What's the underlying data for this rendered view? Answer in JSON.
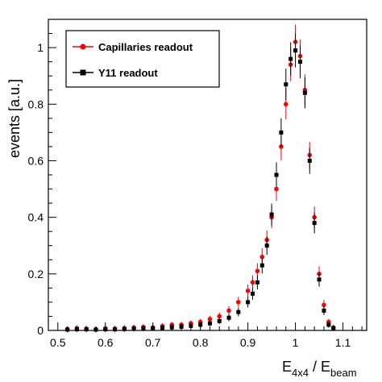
{
  "chart_data": {
    "type": "scatter",
    "title": "",
    "xlabel": {
      "main": "E",
      "sub1": "4x4",
      "sep": " / E",
      "sub2": "beam"
    },
    "ylabel": "events  [a.u.]",
    "xlim": [
      0.48,
      1.15
    ],
    "ylim": [
      0,
      1.1
    ],
    "x_ticks": [
      0.5,
      0.6,
      0.7,
      0.8,
      0.9,
      1.0,
      1.1
    ],
    "x_tick_labels": [
      "0.5",
      "0.6",
      "0.7",
      "0.8",
      "0.9",
      "1",
      "1.1"
    ],
    "y_ticks": [
      0,
      0.2,
      0.4,
      0.6,
      0.8,
      1.0
    ],
    "y_tick_labels": [
      "0",
      "0.2",
      "0.4",
      "0.6",
      "0.8",
      "1"
    ],
    "grid": false,
    "legend_position": "top-left",
    "series": [
      {
        "name": "Capillaries readout",
        "color": "#ff0000",
        "marker": "circle",
        "points": [
          [
            0.52,
            0.005
          ],
          [
            0.54,
            0.008
          ],
          [
            0.56,
            0.006
          ],
          [
            0.58,
            0.004
          ],
          [
            0.6,
            0.007
          ],
          [
            0.62,
            0.006
          ],
          [
            0.64,
            0.008
          ],
          [
            0.66,
            0.01
          ],
          [
            0.68,
            0.012
          ],
          [
            0.7,
            0.01
          ],
          [
            0.72,
            0.015
          ],
          [
            0.74,
            0.02
          ],
          [
            0.76,
            0.02
          ],
          [
            0.78,
            0.025
          ],
          [
            0.8,
            0.03
          ],
          [
            0.82,
            0.04
          ],
          [
            0.84,
            0.05
          ],
          [
            0.86,
            0.07
          ],
          [
            0.88,
            0.1
          ],
          [
            0.9,
            0.14
          ],
          [
            0.91,
            0.17
          ],
          [
            0.92,
            0.21
          ],
          [
            0.93,
            0.26
          ],
          [
            0.94,
            0.32
          ],
          [
            0.95,
            0.4
          ],
          [
            0.96,
            0.5
          ],
          [
            0.97,
            0.65
          ],
          [
            0.98,
            0.8
          ],
          [
            0.99,
            0.94
          ],
          [
            1.0,
            1.02
          ],
          [
            1.01,
            0.97
          ],
          [
            1.02,
            0.85
          ],
          [
            1.03,
            0.62
          ],
          [
            1.04,
            0.4
          ],
          [
            1.05,
            0.2
          ],
          [
            1.06,
            0.09
          ],
          [
            1.07,
            0.03
          ],
          [
            1.08,
            0.01
          ]
        ]
      },
      {
        "name": "Y11 readout",
        "color": "#000000",
        "marker": "square",
        "points": [
          [
            0.52,
            0.003
          ],
          [
            0.54,
            0.004
          ],
          [
            0.56,
            0.004
          ],
          [
            0.58,
            0.003
          ],
          [
            0.6,
            0.004
          ],
          [
            0.62,
            0.004
          ],
          [
            0.64,
            0.005
          ],
          [
            0.66,
            0.006
          ],
          [
            0.68,
            0.007
          ],
          [
            0.7,
            0.008
          ],
          [
            0.72,
            0.009
          ],
          [
            0.74,
            0.011
          ],
          [
            0.76,
            0.013
          ],
          [
            0.78,
            0.016
          ],
          [
            0.8,
            0.02
          ],
          [
            0.82,
            0.025
          ],
          [
            0.84,
            0.033
          ],
          [
            0.86,
            0.045
          ],
          [
            0.88,
            0.065
          ],
          [
            0.9,
            0.1
          ],
          [
            0.91,
            0.13
          ],
          [
            0.92,
            0.17
          ],
          [
            0.93,
            0.23
          ],
          [
            0.94,
            0.3
          ],
          [
            0.95,
            0.41
          ],
          [
            0.96,
            0.55
          ],
          [
            0.97,
            0.7
          ],
          [
            0.98,
            0.87
          ],
          [
            0.99,
            0.96
          ],
          [
            1.0,
            0.99
          ],
          [
            1.01,
            0.95
          ],
          [
            1.02,
            0.84
          ],
          [
            1.03,
            0.6
          ],
          [
            1.04,
            0.38
          ],
          [
            1.05,
            0.18
          ],
          [
            1.06,
            0.07
          ],
          [
            1.07,
            0.02
          ],
          [
            1.08,
            0.008
          ]
        ]
      }
    ]
  }
}
